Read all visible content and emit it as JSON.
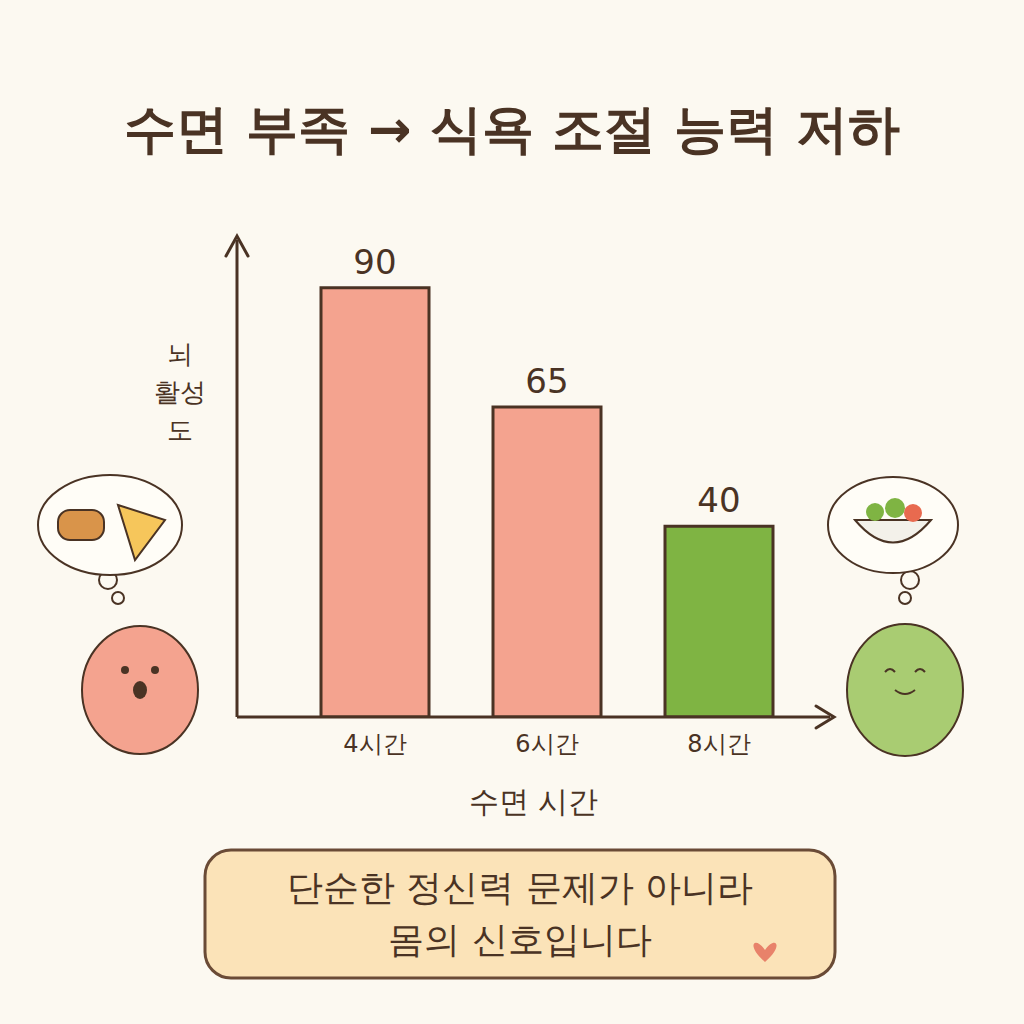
{
  "chart_data": {
    "type": "bar",
    "title": "수면 부족 → 식욕 조절 능력 저하",
    "y_label": "뇌 활성도",
    "x_label": "수면 시간",
    "categories": [
      "4시간",
      "6시간",
      "8시간"
    ],
    "values": [
      90,
      65,
      40
    ],
    "colors": [
      "#f4a38f",
      "#f4a38f",
      "#7fb443"
    ],
    "ylim": [
      0,
      100
    ],
    "grid": false,
    "data_labels": true,
    "tick_labels": "x",
    "annotation": [
      "단순한 정신력 문제가 아니라",
      "몸의 신호입니다"
    ]
  }
}
